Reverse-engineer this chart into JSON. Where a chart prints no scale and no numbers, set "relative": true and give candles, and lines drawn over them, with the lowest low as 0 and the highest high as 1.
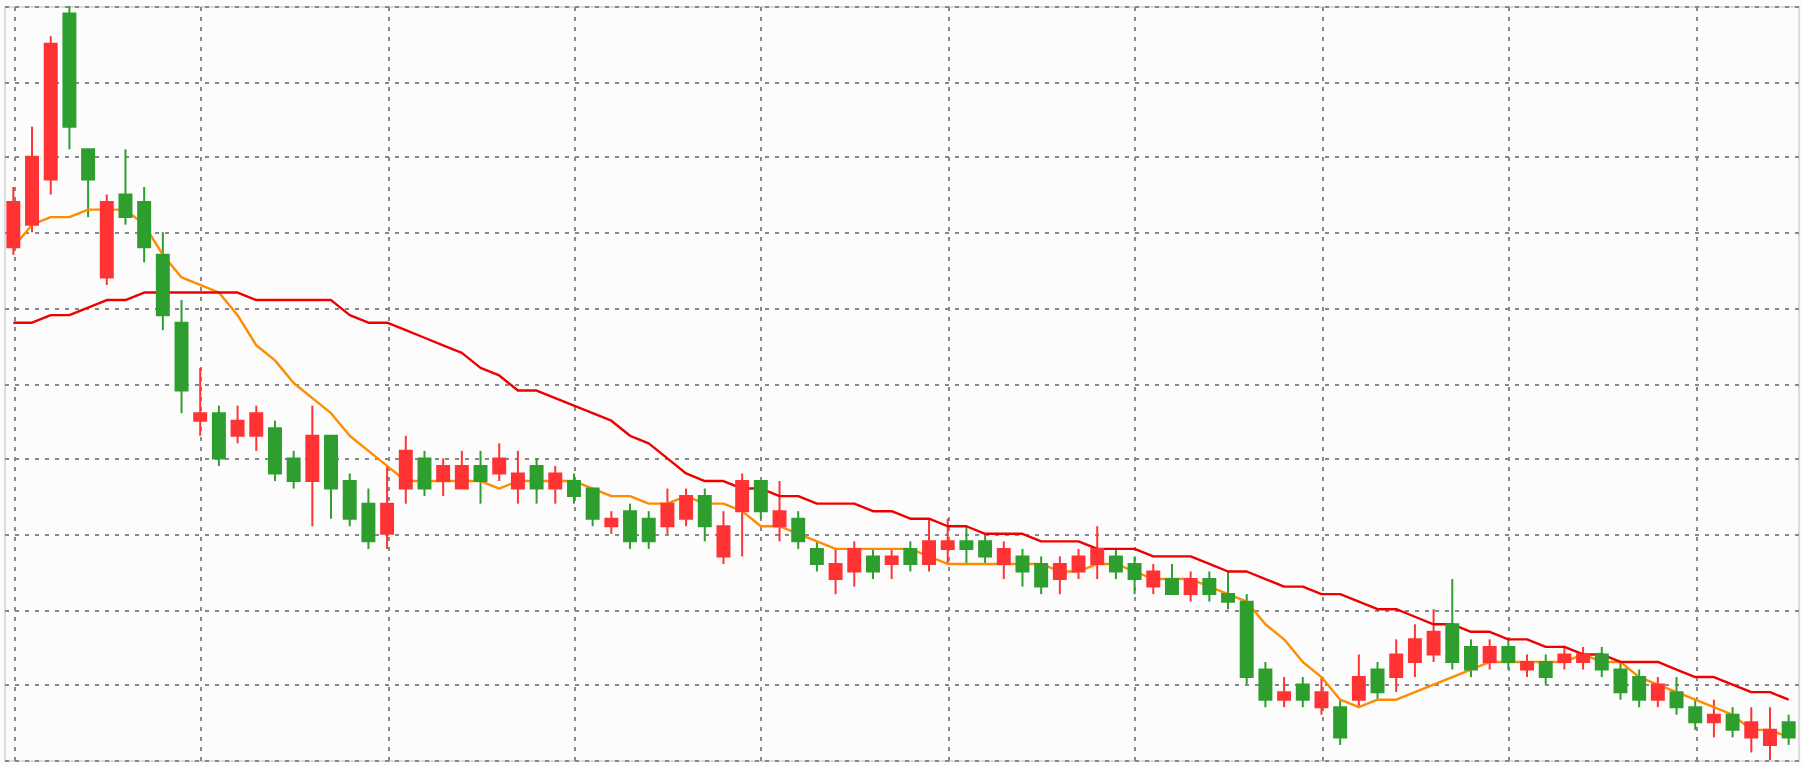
{
  "chart_data": {
    "type": "candlestick",
    "relative": true,
    "grid": true,
    "categories": [
      null,
      null,
      null,
      null,
      null,
      null,
      null,
      null,
      null,
      null,
      null,
      null,
      null,
      null,
      null,
      null,
      null,
      null,
      null,
      null,
      null,
      null,
      null,
      null,
      null,
      null,
      null,
      null,
      null,
      null,
      null,
      null,
      null,
      null,
      null,
      null,
      null,
      null,
      null,
      null,
      null,
      null,
      null,
      null,
      null,
      null,
      null,
      null,
      null,
      null,
      null,
      null,
      null,
      null,
      null,
      null,
      null,
      null,
      null,
      null,
      null,
      null,
      null,
      null,
      null,
      null,
      null,
      null,
      null,
      null,
      null,
      null,
      null,
      null,
      null,
      null,
      null,
      null,
      null,
      null,
      null,
      null,
      null,
      null,
      null,
      null,
      null,
      null,
      null,
      null,
      null,
      null,
      null,
      null,
      null,
      null
    ],
    "ohlc": [
      [
        0.68,
        0.76,
        0.67,
        0.74
      ],
      [
        0.71,
        0.84,
        0.7,
        0.8
      ],
      [
        0.77,
        0.96,
        0.75,
        0.95
      ],
      [
        0.99,
        1.0,
        0.81,
        0.84
      ],
      [
        0.81,
        0.81,
        0.72,
        0.77
      ],
      [
        0.64,
        0.75,
        0.63,
        0.74
      ],
      [
        0.75,
        0.81,
        0.71,
        0.72
      ],
      [
        0.74,
        0.76,
        0.66,
        0.68
      ],
      [
        0.67,
        0.7,
        0.57,
        0.59
      ],
      [
        0.58,
        0.61,
        0.46,
        0.49
      ],
      [
        0.45,
        0.52,
        0.43,
        0.46
      ],
      [
        0.46,
        0.47,
        0.39,
        0.4
      ],
      [
        0.43,
        0.47,
        0.42,
        0.45
      ],
      [
        0.43,
        0.47,
        0.41,
        0.46
      ],
      [
        0.44,
        0.45,
        0.37,
        0.38
      ],
      [
        0.4,
        0.41,
        0.36,
        0.37
      ],
      [
        0.37,
        0.47,
        0.31,
        0.43
      ],
      [
        0.43,
        0.43,
        0.32,
        0.36
      ],
      [
        0.37,
        0.38,
        0.31,
        0.32
      ],
      [
        0.34,
        0.36,
        0.28,
        0.29
      ],
      [
        0.3,
        0.39,
        0.28,
        0.34
      ],
      [
        0.36,
        0.43,
        0.34,
        0.41
      ],
      [
        0.4,
        0.41,
        0.35,
        0.36
      ],
      [
        0.37,
        0.4,
        0.35,
        0.39
      ],
      [
        0.36,
        0.41,
        0.36,
        0.39
      ],
      [
        0.39,
        0.41,
        0.34,
        0.37
      ],
      [
        0.38,
        0.42,
        0.37,
        0.4
      ],
      [
        0.36,
        0.41,
        0.34,
        0.38
      ],
      [
        0.39,
        0.4,
        0.34,
        0.36
      ],
      [
        0.36,
        0.39,
        0.34,
        0.38
      ],
      [
        0.37,
        0.38,
        0.34,
        0.35
      ],
      [
        0.36,
        0.36,
        0.31,
        0.32
      ],
      [
        0.31,
        0.33,
        0.3,
        0.32
      ],
      [
        0.33,
        0.34,
        0.28,
        0.29
      ],
      [
        0.32,
        0.33,
        0.28,
        0.29
      ],
      [
        0.31,
        0.36,
        0.3,
        0.34
      ],
      [
        0.32,
        0.36,
        0.31,
        0.35
      ],
      [
        0.35,
        0.36,
        0.29,
        0.31
      ],
      [
        0.27,
        0.33,
        0.26,
        0.31
      ],
      [
        0.33,
        0.38,
        0.27,
        0.37
      ],
      [
        0.37,
        0.37,
        0.32,
        0.33
      ],
      [
        0.31,
        0.37,
        0.29,
        0.33
      ],
      [
        0.32,
        0.33,
        0.28,
        0.29
      ],
      [
        0.28,
        0.29,
        0.25,
        0.26
      ],
      [
        0.24,
        0.28,
        0.22,
        0.26
      ],
      [
        0.25,
        0.29,
        0.23,
        0.28
      ],
      [
        0.27,
        0.28,
        0.24,
        0.25
      ],
      [
        0.26,
        0.28,
        0.24,
        0.27
      ],
      [
        0.28,
        0.29,
        0.25,
        0.26
      ],
      [
        0.26,
        0.32,
        0.25,
        0.29
      ],
      [
        0.28,
        0.32,
        0.26,
        0.29
      ],
      [
        0.29,
        0.31,
        0.26,
        0.28
      ],
      [
        0.29,
        0.3,
        0.26,
        0.27
      ],
      [
        0.26,
        0.29,
        0.24,
        0.28
      ],
      [
        0.27,
        0.28,
        0.23,
        0.25
      ],
      [
        0.26,
        0.27,
        0.22,
        0.23
      ],
      [
        0.24,
        0.27,
        0.22,
        0.26
      ],
      [
        0.25,
        0.28,
        0.24,
        0.27
      ],
      [
        0.26,
        0.31,
        0.24,
        0.28
      ],
      [
        0.27,
        0.28,
        0.24,
        0.25
      ],
      [
        0.26,
        0.27,
        0.22,
        0.24
      ],
      [
        0.23,
        0.26,
        0.22,
        0.25
      ],
      [
        0.24,
        0.26,
        0.22,
        0.22
      ],
      [
        0.22,
        0.25,
        0.21,
        0.24
      ],
      [
        0.24,
        0.25,
        0.21,
        0.22
      ],
      [
        0.22,
        0.25,
        0.2,
        0.21
      ],
      [
        0.21,
        0.22,
        0.1,
        0.11
      ],
      [
        0.12,
        0.13,
        0.07,
        0.08
      ],
      [
        0.08,
        0.11,
        0.07,
        0.09
      ],
      [
        0.1,
        0.11,
        0.07,
        0.08
      ],
      [
        0.07,
        0.11,
        0.06,
        0.09
      ],
      [
        0.07,
        0.08,
        0.02,
        0.03
      ],
      [
        0.08,
        0.14,
        0.07,
        0.11
      ],
      [
        0.12,
        0.13,
        0.08,
        0.09
      ],
      [
        0.11,
        0.16,
        0.09,
        0.14
      ],
      [
        0.13,
        0.18,
        0.11,
        0.16
      ],
      [
        0.14,
        0.2,
        0.13,
        0.17
      ],
      [
        0.18,
        0.24,
        0.12,
        0.13
      ],
      [
        0.15,
        0.16,
        0.11,
        0.12
      ],
      [
        0.13,
        0.16,
        0.12,
        0.15
      ],
      [
        0.15,
        0.16,
        0.12,
        0.13
      ],
      [
        0.12,
        0.14,
        0.11,
        0.13
      ],
      [
        0.13,
        0.14,
        0.1,
        0.11
      ],
      [
        0.13,
        0.15,
        0.12,
        0.14
      ],
      [
        0.13,
        0.15,
        0.12,
        0.14
      ],
      [
        0.14,
        0.15,
        0.11,
        0.12
      ],
      [
        0.12,
        0.13,
        0.08,
        0.09
      ],
      [
        0.11,
        0.12,
        0.07,
        0.08
      ],
      [
        0.08,
        0.11,
        0.07,
        0.1
      ],
      [
        0.09,
        0.11,
        0.06,
        0.07
      ],
      [
        0.07,
        0.08,
        0.04,
        0.05
      ],
      [
        0.05,
        0.08,
        0.03,
        0.06
      ],
      [
        0.06,
        0.07,
        0.03,
        0.04
      ],
      [
        0.03,
        0.07,
        0.01,
        0.05
      ],
      [
        0.02,
        0.07,
        0.0,
        0.04
      ],
      [
        0.05,
        0.06,
        0.02,
        0.03
      ]
    ],
    "colors": [
      "#ff3333",
      "#ff3333",
      "#ff3333",
      "#2e9e2e",
      "#2e9e2e",
      "#ff3333",
      "#2e9e2e",
      "#2e9e2e",
      "#2e9e2e",
      "#2e9e2e",
      "#ff3333",
      "#2e9e2e",
      "#ff3333",
      "#ff3333",
      "#2e9e2e",
      "#2e9e2e",
      "#ff3333",
      "#2e9e2e",
      "#2e9e2e",
      "#2e9e2e",
      "#ff3333",
      "#ff3333",
      "#2e9e2e",
      "#ff3333",
      "#ff3333",
      "#2e9e2e",
      "#ff3333",
      "#ff3333",
      "#2e9e2e",
      "#ff3333",
      "#2e9e2e",
      "#2e9e2e",
      "#ff3333",
      "#2e9e2e",
      "#2e9e2e",
      "#ff3333",
      "#ff3333",
      "#2e9e2e",
      "#ff3333",
      "#ff3333",
      "#2e9e2e",
      "#ff3333",
      "#2e9e2e",
      "#2e9e2e",
      "#ff3333",
      "#ff3333",
      "#2e9e2e",
      "#ff3333",
      "#2e9e2e",
      "#ff3333",
      "#ff3333",
      "#2e9e2e",
      "#2e9e2e",
      "#ff3333",
      "#2e9e2e",
      "#2e9e2e",
      "#ff3333",
      "#ff3333",
      "#ff3333",
      "#2e9e2e",
      "#2e9e2e",
      "#ff3333",
      "#2e9e2e",
      "#ff3333",
      "#2e9e2e",
      "#2e9e2e",
      "#2e9e2e",
      "#2e9e2e",
      "#ff3333",
      "#2e9e2e",
      "#ff3333",
      "#2e9e2e",
      "#ff3333",
      "#2e9e2e",
      "#ff3333",
      "#ff3333",
      "#ff3333",
      "#2e9e2e",
      "#2e9e2e",
      "#ff3333",
      "#2e9e2e",
      "#ff3333",
      "#2e9e2e",
      "#ff3333",
      "#ff3333",
      "#2e9e2e",
      "#2e9e2e",
      "#2e9e2e",
      "#ff3333",
      "#2e9e2e",
      "#2e9e2e",
      "#ff3333",
      "#2e9e2e",
      "#ff3333",
      "#ff3333",
      "#2e9e2e"
    ],
    "series": [
      {
        "type": "line",
        "color": "#ff8c00",
        "values": [
          0.68,
          0.71,
          0.72,
          0.72,
          0.73,
          0.73,
          0.73,
          0.71,
          0.67,
          0.64,
          0.63,
          0.62,
          0.59,
          0.55,
          0.53,
          0.5,
          0.48,
          0.46,
          0.43,
          0.41,
          0.39,
          0.37,
          0.37,
          0.37,
          0.37,
          0.37,
          0.36,
          0.37,
          0.37,
          0.37,
          0.37,
          0.36,
          0.35,
          0.35,
          0.34,
          0.34,
          0.35,
          0.34,
          0.34,
          0.33,
          0.31,
          0.31,
          0.3,
          0.29,
          0.28,
          0.28,
          0.28,
          0.28,
          0.28,
          0.27,
          0.26,
          0.26,
          0.26,
          0.26,
          0.26,
          0.26,
          0.25,
          0.25,
          0.26,
          0.26,
          0.25,
          0.24,
          0.24,
          0.24,
          0.23,
          0.22,
          0.21,
          0.18,
          0.16,
          0.13,
          0.11,
          0.08,
          0.07,
          0.08,
          0.08,
          0.09,
          0.1,
          0.11,
          0.12,
          0.13,
          0.13,
          0.13,
          0.13,
          0.13,
          0.14,
          0.13,
          0.13,
          0.11,
          0.1,
          0.09,
          0.08,
          0.07,
          0.06,
          0.04,
          0.04,
          0.03
        ]
      },
      {
        "type": "line",
        "color": "#ee0000",
        "values": [
          0.58,
          0.58,
          0.59,
          0.59,
          0.6,
          0.61,
          0.61,
          0.62,
          0.62,
          0.62,
          0.62,
          0.62,
          0.62,
          0.61,
          0.61,
          0.61,
          0.61,
          0.61,
          0.59,
          0.58,
          0.58,
          0.57,
          0.56,
          0.55,
          0.54,
          0.52,
          0.51,
          0.49,
          0.49,
          0.48,
          0.47,
          0.46,
          0.45,
          0.43,
          0.42,
          0.4,
          0.38,
          0.37,
          0.37,
          0.36,
          0.36,
          0.35,
          0.35,
          0.34,
          0.34,
          0.34,
          0.33,
          0.33,
          0.32,
          0.32,
          0.31,
          0.31,
          0.3,
          0.3,
          0.3,
          0.29,
          0.29,
          0.29,
          0.28,
          0.28,
          0.28,
          0.27,
          0.27,
          0.27,
          0.26,
          0.25,
          0.25,
          0.24,
          0.23,
          0.23,
          0.22,
          0.22,
          0.21,
          0.2,
          0.2,
          0.19,
          0.18,
          0.18,
          0.17,
          0.17,
          0.16,
          0.16,
          0.15,
          0.15,
          0.14,
          0.14,
          0.13,
          0.13,
          0.13,
          0.12,
          0.11,
          0.11,
          0.1,
          0.09,
          0.09,
          0.08
        ]
      }
    ]
  }
}
